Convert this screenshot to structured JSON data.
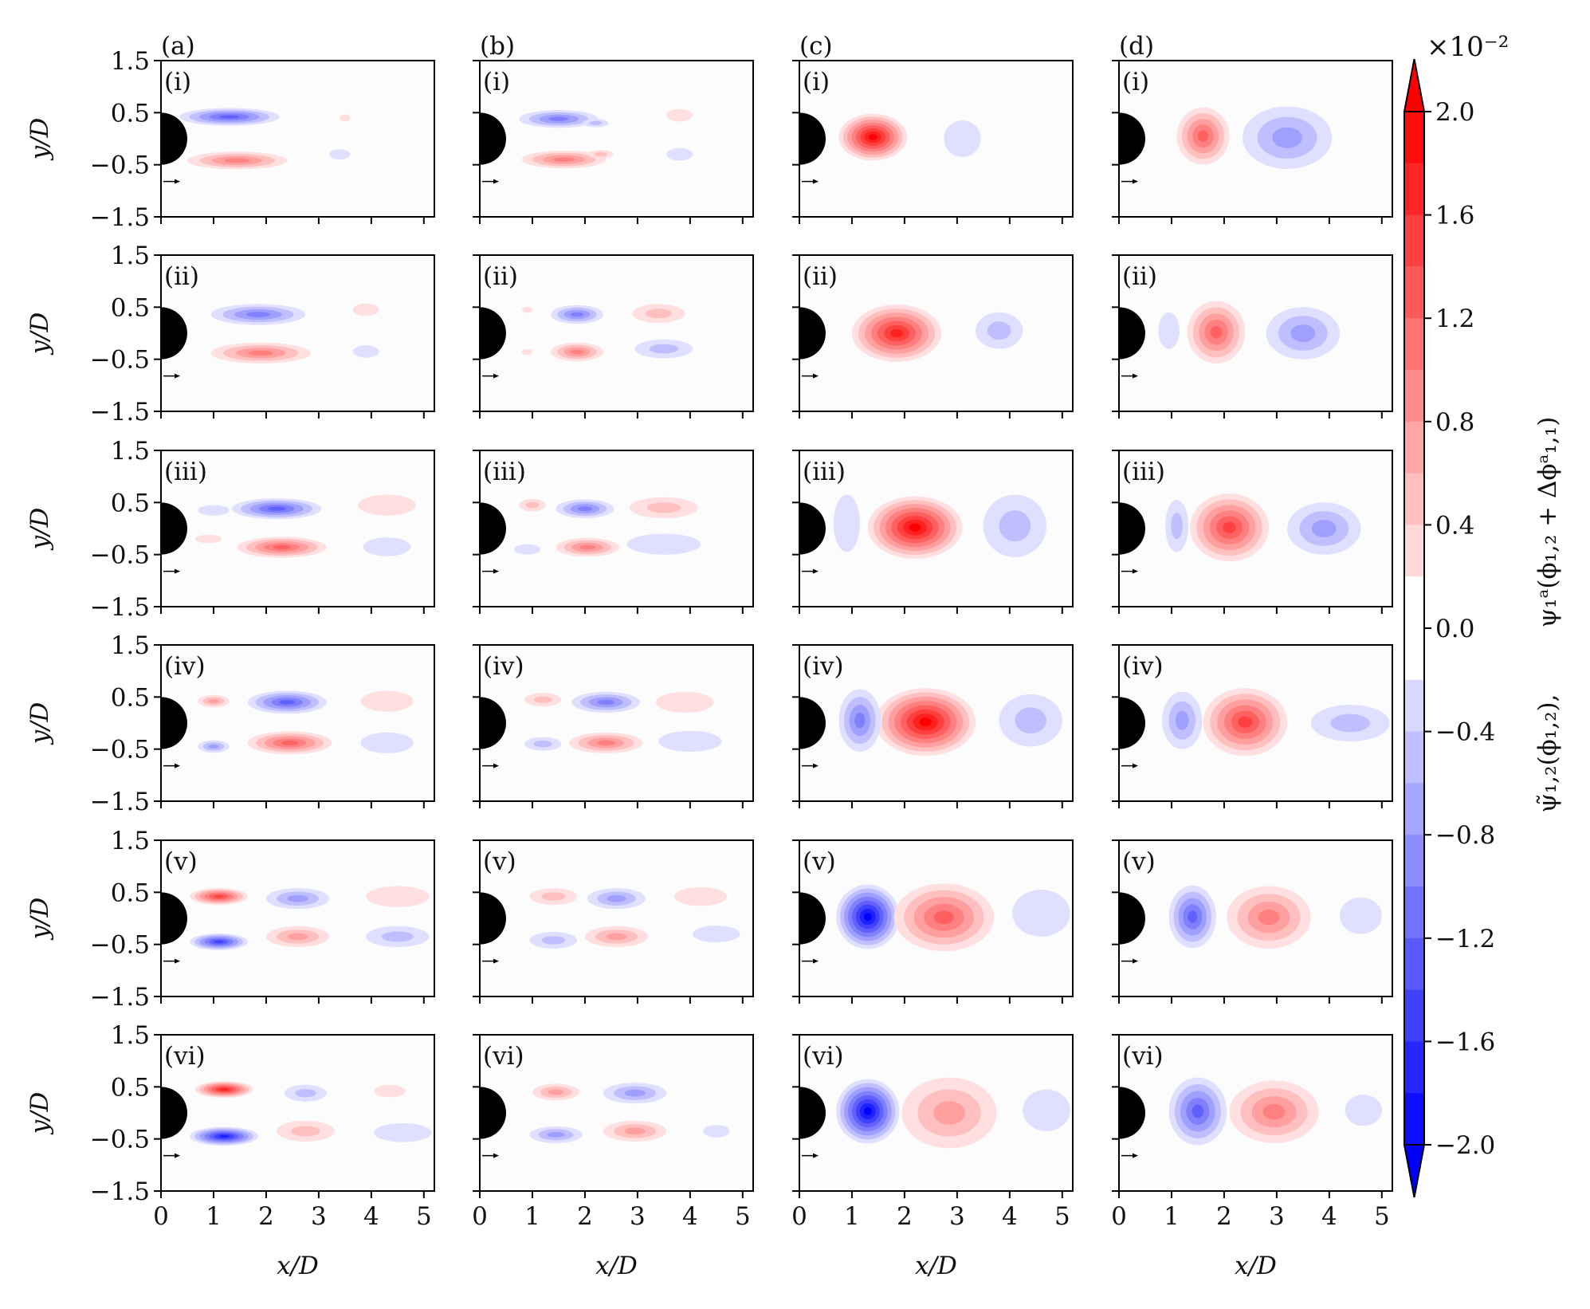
{
  "chart_data": {
    "type": "heatmap",
    "grid": "6 rows x 4 columns of filled-contour maps",
    "xlabel": "x/D",
    "ylabel": "y/D",
    "xlim": [
      0,
      5.2
    ],
    "ylim": [
      -1.5,
      1.5
    ],
    "x_ticks": [
      "0",
      "1",
      "2",
      "3",
      "4",
      "5"
    ],
    "y_ticks": [
      "1.5",
      "0.5",
      "−0.5",
      "−1.5"
    ],
    "column_labels": [
      "(a)",
      "(b)",
      "(c)",
      "(d)"
    ],
    "row_labels": [
      "(i)",
      "(ii)",
      "(iii)",
      "(iv)",
      "(v)",
      "(vi)"
    ],
    "colorbar": {
      "exponent_label": "×10⁻²",
      "min": -2.0,
      "max": 2.0,
      "tick_labels": [
        "2.0",
        "1.6",
        "1.2",
        "0.8",
        "0.4",
        "0.0",
        "−0.4",
        "−0.8",
        "−1.2",
        "−1.6",
        "−2.0"
      ],
      "label_left": "ψ̃₁,₂(ϕ₁,₂),",
      "label_right": "ψ₁ᵃ(ϕ₁,₂ + Δϕᵃ₁,₁)",
      "colors": {
        "positive": "#ff0000",
        "negative": "#0000ff",
        "zero": "#ffffff"
      }
    },
    "blob_format": "[x_center, y_center, x_halfwidth, y_halfwidth, amplitude x 10^-2]",
    "panels": [
      [
        {
          "blobs": [
            [
              1.3,
              0.42,
              0.95,
              0.17,
              -1.2
            ],
            [
              1.45,
              -0.42,
              0.95,
              0.17,
              1.1
            ],
            [
              3.4,
              -0.3,
              0.2,
              0.1,
              -0.25
            ],
            [
              3.5,
              0.4,
              0.1,
              0.07,
              0.15
            ]
          ]
        },
        {
          "blobs": [
            [
              1.5,
              0.38,
              0.75,
              0.17,
              -0.95
            ],
            [
              2.2,
              0.3,
              0.25,
              0.08,
              -0.4
            ],
            [
              1.6,
              -0.4,
              0.8,
              0.17,
              0.95
            ],
            [
              2.3,
              -0.3,
              0.25,
              0.08,
              0.4
            ],
            [
              3.8,
              0.45,
              0.25,
              0.12,
              0.3
            ],
            [
              3.8,
              -0.3,
              0.25,
              0.12,
              -0.3
            ]
          ]
        },
        {
          "blobs": [
            [
              1.4,
              0.03,
              0.65,
              0.45,
              1.9
            ],
            [
              3.1,
              0.0,
              0.35,
              0.35,
              -0.35
            ]
          ]
        },
        {
          "blobs": [
            [
              1.6,
              0.05,
              0.5,
              0.55,
              1.2
            ],
            [
              3.2,
              0.02,
              0.85,
              0.6,
              -0.7
            ]
          ]
        }
      ],
      [
        {
          "blobs": [
            [
              1.85,
              0.36,
              0.9,
              0.2,
              -1.05
            ],
            [
              1.9,
              -0.38,
              0.95,
              0.2,
              1.05
            ],
            [
              3.9,
              0.45,
              0.25,
              0.12,
              0.25
            ],
            [
              3.9,
              -0.35,
              0.25,
              0.12,
              -0.3
            ]
          ]
        },
        {
          "blobs": [
            [
              1.85,
              0.36,
              0.5,
              0.18,
              -0.9
            ],
            [
              1.85,
              -0.36,
              0.5,
              0.18,
              0.95
            ],
            [
              3.4,
              0.38,
              0.5,
              0.18,
              0.45
            ],
            [
              3.5,
              -0.3,
              0.55,
              0.18,
              -0.45
            ],
            [
              0.9,
              0.45,
              0.1,
              0.06,
              0.15
            ],
            [
              0.9,
              -0.36,
              0.1,
              0.06,
              0.15
            ]
          ]
        },
        {
          "blobs": [
            [
              1.85,
              0.0,
              0.85,
              0.55,
              1.85
            ],
            [
              3.8,
              0.05,
              0.45,
              0.35,
              -0.4
            ]
          ]
        },
        {
          "blobs": [
            [
              1.85,
              0.02,
              0.55,
              0.6,
              1.35
            ],
            [
              3.5,
              0.0,
              0.7,
              0.5,
              -0.65
            ],
            [
              0.95,
              0.05,
              0.2,
              0.35,
              -0.3
            ]
          ]
        }
      ],
      [
        {
          "blobs": [
            [
              2.2,
              0.38,
              0.85,
              0.2,
              -1.15
            ],
            [
              2.3,
              -0.36,
              0.85,
              0.2,
              1.15
            ],
            [
              4.3,
              0.45,
              0.55,
              0.2,
              0.35
            ],
            [
              4.3,
              -0.35,
              0.45,
              0.18,
              -0.3
            ],
            [
              1.0,
              0.35,
              0.3,
              0.1,
              -0.2
            ],
            [
              0.9,
              -0.2,
              0.25,
              0.08,
              0.2
            ]
          ]
        },
        {
          "blobs": [
            [
              2.0,
              0.38,
              0.55,
              0.18,
              -1.05
            ],
            [
              2.05,
              -0.36,
              0.6,
              0.18,
              1.05
            ],
            [
              1.0,
              0.45,
              0.25,
              0.12,
              0.45
            ],
            [
              0.9,
              -0.4,
              0.25,
              0.1,
              -0.35
            ],
            [
              3.5,
              0.4,
              0.65,
              0.2,
              0.4
            ],
            [
              3.5,
              -0.3,
              0.7,
              0.2,
              -0.35
            ]
          ]
        },
        {
          "blobs": [
            [
              2.2,
              0.02,
              0.9,
              0.6,
              1.9
            ],
            [
              4.1,
              0.05,
              0.6,
              0.6,
              -0.45
            ],
            [
              0.9,
              0.1,
              0.25,
              0.55,
              -0.35
            ]
          ]
        },
        {
          "blobs": [
            [
              2.1,
              0.02,
              0.75,
              0.65,
              1.45
            ],
            [
              3.9,
              0.0,
              0.7,
              0.5,
              -0.65
            ],
            [
              1.1,
              0.05,
              0.22,
              0.5,
              -0.55
            ]
          ]
        }
      ],
      [
        {
          "blobs": [
            [
              2.4,
              0.4,
              0.75,
              0.22,
              -1.2
            ],
            [
              2.45,
              -0.38,
              0.8,
              0.22,
              1.25
            ],
            [
              1.0,
              0.42,
              0.3,
              0.12,
              0.8
            ],
            [
              1.0,
              -0.45,
              0.3,
              0.12,
              -0.8
            ],
            [
              4.3,
              0.42,
              0.5,
              0.2,
              0.3
            ],
            [
              4.3,
              -0.38,
              0.5,
              0.2,
              -0.35
            ]
          ]
        },
        {
          "blobs": [
            [
              2.4,
              0.4,
              0.65,
              0.2,
              -1.0
            ],
            [
              2.4,
              -0.38,
              0.7,
              0.2,
              1.0
            ],
            [
              1.2,
              0.45,
              0.35,
              0.13,
              0.55
            ],
            [
              1.2,
              -0.4,
              0.35,
              0.13,
              -0.55
            ],
            [
              3.9,
              0.4,
              0.55,
              0.2,
              0.25
            ],
            [
              4.0,
              -0.35,
              0.6,
              0.2,
              -0.3
            ]
          ]
        },
        {
          "blobs": [
            [
              2.4,
              0.02,
              0.95,
              0.65,
              1.95
            ],
            [
              1.15,
              0.05,
              0.4,
              0.6,
              -1.05
            ],
            [
              4.4,
              0.05,
              0.6,
              0.5,
              -0.45
            ]
          ]
        },
        {
          "blobs": [
            [
              2.4,
              0.02,
              0.8,
              0.65,
              1.45
            ],
            [
              1.2,
              0.05,
              0.38,
              0.55,
              -0.85
            ],
            [
              4.4,
              0.0,
              0.75,
              0.35,
              -0.4
            ]
          ]
        }
      ],
      [
        {
          "blobs": [
            [
              1.1,
              0.42,
              0.55,
              0.16,
              1.5
            ],
            [
              1.1,
              -0.45,
              0.55,
              0.16,
              -1.5
            ],
            [
              2.6,
              0.38,
              0.6,
              0.2,
              -0.85
            ],
            [
              2.6,
              -0.35,
              0.6,
              0.2,
              0.85
            ],
            [
              4.5,
              0.42,
              0.6,
              0.2,
              0.3
            ],
            [
              4.5,
              -0.35,
              0.6,
              0.2,
              -0.4
            ]
          ]
        },
        {
          "blobs": [
            [
              1.4,
              0.42,
              0.45,
              0.16,
              0.6
            ],
            [
              1.4,
              -0.42,
              0.45,
              0.16,
              -0.6
            ],
            [
              2.6,
              0.38,
              0.55,
              0.2,
              -0.8
            ],
            [
              2.6,
              -0.35,
              0.6,
              0.2,
              0.8
            ],
            [
              4.2,
              0.42,
              0.5,
              0.18,
              0.25
            ],
            [
              4.5,
              -0.3,
              0.45,
              0.16,
              -0.25
            ]
          ]
        },
        {
          "blobs": [
            [
              1.3,
              0.03,
              0.6,
              0.62,
              -1.95
            ],
            [
              2.75,
              0.02,
              0.95,
              0.65,
              1.2
            ],
            [
              4.6,
              0.1,
              0.55,
              0.45,
              -0.35
            ]
          ]
        },
        {
          "blobs": [
            [
              1.4,
              0.03,
              0.45,
              0.6,
              -1.2
            ],
            [
              2.85,
              0.02,
              0.8,
              0.6,
              1.05
            ],
            [
              4.6,
              0.05,
              0.4,
              0.35,
              -0.3
            ]
          ]
        }
      ],
      [
        {
          "blobs": [
            [
              1.2,
              0.45,
              0.55,
              0.16,
              1.85
            ],
            [
              1.2,
              -0.45,
              0.65,
              0.18,
              -1.7
            ],
            [
              2.75,
              0.38,
              0.4,
              0.16,
              -0.45
            ],
            [
              2.75,
              -0.35,
              0.55,
              0.2,
              0.45
            ],
            [
              4.35,
              0.42,
              0.3,
              0.12,
              0.2
            ],
            [
              4.6,
              -0.38,
              0.55,
              0.18,
              -0.3
            ]
          ]
        },
        {
          "blobs": [
            [
              1.45,
              0.4,
              0.45,
              0.16,
              0.8
            ],
            [
              1.45,
              -0.42,
              0.5,
              0.16,
              -0.8
            ],
            [
              2.95,
              0.38,
              0.6,
              0.2,
              -0.75
            ],
            [
              2.95,
              -0.35,
              0.6,
              0.2,
              0.7
            ],
            [
              4.5,
              -0.35,
              0.25,
              0.12,
              -0.2
            ]
          ]
        },
        {
          "blobs": [
            [
              1.3,
              0.03,
              0.6,
              0.62,
              -2.0
            ],
            [
              2.85,
              0.0,
              0.9,
              0.68,
              0.85
            ],
            [
              4.7,
              0.05,
              0.45,
              0.4,
              -0.3
            ]
          ]
        },
        {
          "blobs": [
            [
              1.5,
              0.03,
              0.55,
              0.65,
              -1.3
            ],
            [
              2.95,
              0.02,
              0.85,
              0.6,
              0.95
            ],
            [
              4.65,
              0.05,
              0.35,
              0.3,
              -0.25
            ]
          ]
        }
      ]
    ]
  }
}
